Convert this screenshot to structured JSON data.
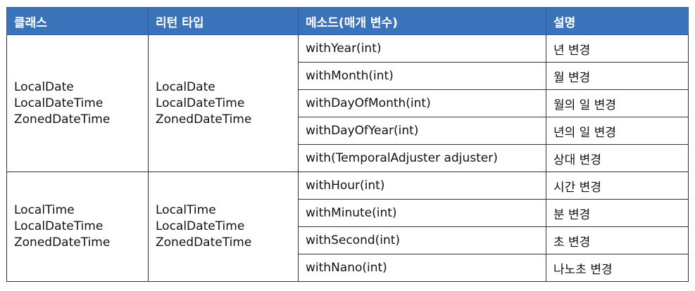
{
  "headers": {
    "class": "클래스",
    "return_type": "리턴 타입",
    "method": "메소드(매개 변수)",
    "description": "설명"
  },
  "groups": [
    {
      "classes": [
        "LocalDate",
        "LocalDateTime",
        "ZonedDateTime"
      ],
      "return_types": [
        "LocalDate",
        "LocalDateTime",
        "ZonedDateTime"
      ],
      "rows": [
        {
          "method": "withYear(int)",
          "description": "년 변경"
        },
        {
          "method": "withMonth(int)",
          "description": "월 변경"
        },
        {
          "method": "withDayOfMonth(int)",
          "description": "월의 일 변경"
        },
        {
          "method": "withDayOfYear(int)",
          "description": "년의 일 변경"
        },
        {
          "method": "with(TemporalAdjuster adjuster)",
          "description": "상대 변경"
        }
      ]
    },
    {
      "classes": [
        "LocalTime",
        "LocalDateTime",
        "ZonedDateTime"
      ],
      "return_types": [
        "LocalTime",
        "LocalDateTime",
        "ZonedDateTime"
      ],
      "rows": [
        {
          "method": "withHour(int)",
          "description": "시간 변경"
        },
        {
          "method": "withMinute(int)",
          "description": "분 변경"
        },
        {
          "method": "withSecond(int)",
          "description": "초 변경"
        },
        {
          "method": "withNano(int)",
          "description": "나노초 변경"
        }
      ]
    }
  ]
}
